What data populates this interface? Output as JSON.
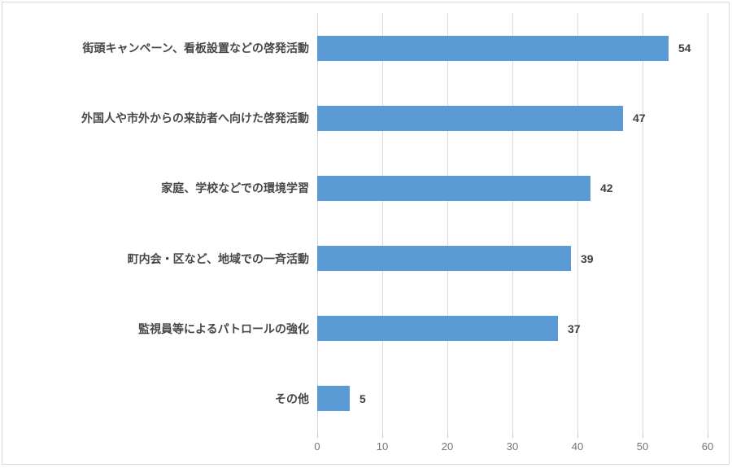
{
  "chart_data": {
    "type": "bar",
    "orientation": "horizontal",
    "title": "",
    "xlabel": "",
    "ylabel": "",
    "categories": [
      "街頭キャンペーン、看板設置などの啓発活動",
      "外国人や市外からの来訪者へ向けた啓発活動",
      "家庭、学校などでの環境学習",
      "町内会・区など、地域での一斉活動",
      "監視員等によるパトロールの強化",
      "その他"
    ],
    "values": [
      54,
      47,
      42,
      39,
      37,
      5
    ],
    "xlim": [
      0,
      60
    ],
    "xticks": [
      0,
      10,
      20,
      30,
      40,
      50,
      60
    ],
    "grid": "vertical-only",
    "legend": "none",
    "colors": {
      "bar": "#5B9BD5",
      "gridline": "#D9D9D9",
      "chart_border": "#D9D9D9",
      "category_label": "#474747",
      "value_label": "#404040",
      "tick_label": "#757575",
      "background": "#FFFFFF"
    }
  }
}
